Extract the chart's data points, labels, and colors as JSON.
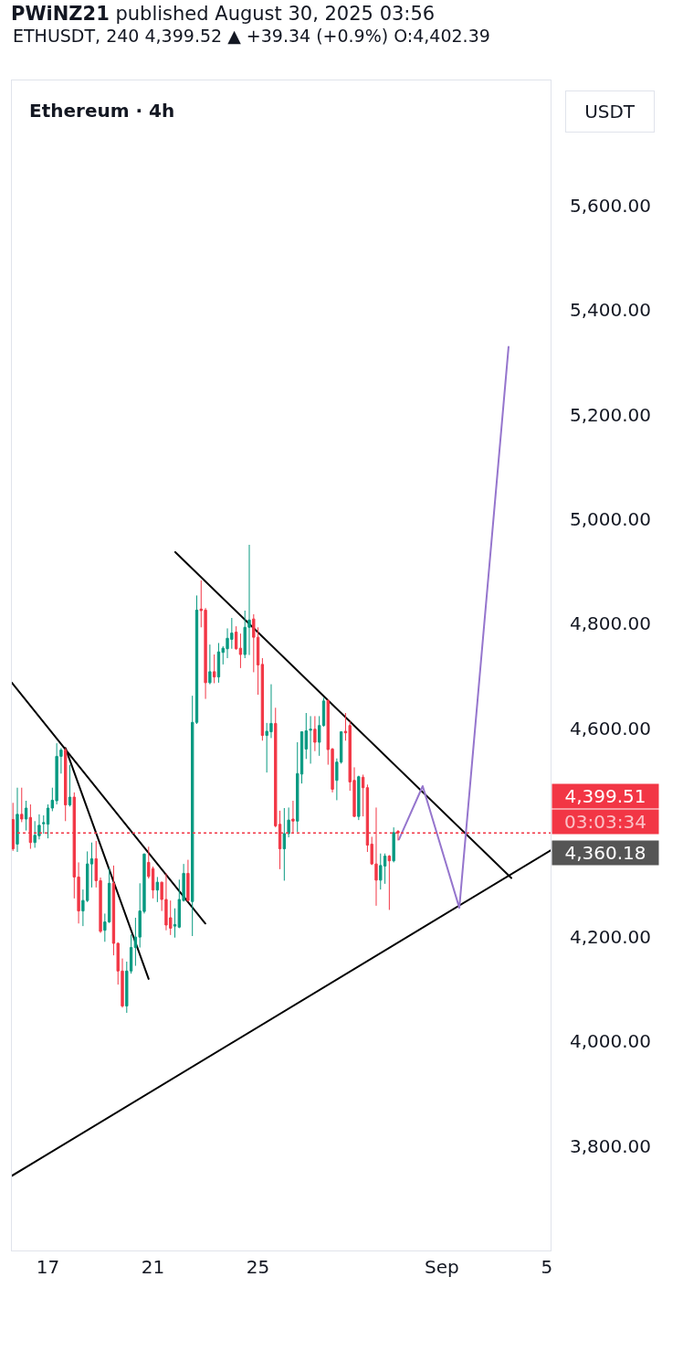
{
  "chart_data": {
    "type": "candlestick",
    "title": "PWiNZ21 published August 30, 2025 03:56",
    "subtitle": "ETHUSDT, 240 4,399.52 ▲ +39.34 (+0.9%) O:4,402.39",
    "annotations": [
      "Ethereum · 4h",
      "USDT",
      "03:03:34",
      "4,360.18"
    ],
    "x": [
      "2025-08-15T16:00",
      "2025-08-15T20:00",
      "2025-08-16T00:00",
      "2025-08-16T04:00",
      "2025-08-16T08:00",
      "2025-08-16T12:00",
      "2025-08-16T16:00",
      "2025-08-16T20:00",
      "2025-08-17T00:00",
      "2025-08-17T04:00",
      "2025-08-17T08:00",
      "2025-08-17T12:00",
      "2025-08-17T16:00",
      "2025-08-17T20:00",
      "2025-08-18T00:00",
      "2025-08-18T04:00",
      "2025-08-18T08:00",
      "2025-08-18T12:00",
      "2025-08-18T16:00",
      "2025-08-18T20:00",
      "2025-08-19T00:00",
      "2025-08-19T04:00",
      "2025-08-19T08:00",
      "2025-08-19T12:00",
      "2025-08-19T16:00",
      "2025-08-19T20:00",
      "2025-08-20T00:00",
      "2025-08-20T04:00",
      "2025-08-20T08:00",
      "2025-08-20T12:00",
      "2025-08-20T16:00",
      "2025-08-20T20:00",
      "2025-08-21T00:00",
      "2025-08-21T04:00",
      "2025-08-21T08:00",
      "2025-08-21T12:00",
      "2025-08-21T16:00",
      "2025-08-21T20:00",
      "2025-08-22T00:00",
      "2025-08-22T04:00",
      "2025-08-22T08:00",
      "2025-08-22T12:00",
      "2025-08-22T16:00",
      "2025-08-22T20:00",
      "2025-08-23T00:00",
      "2025-08-23T04:00",
      "2025-08-23T08:00",
      "2025-08-23T12:00",
      "2025-08-23T16:00",
      "2025-08-23T20:00",
      "2025-08-24T00:00",
      "2025-08-24T04:00",
      "2025-08-24T08:00",
      "2025-08-24T12:00",
      "2025-08-24T16:00",
      "2025-08-24T20:00",
      "2025-08-25T00:00",
      "2025-08-25T04:00",
      "2025-08-25T08:00",
      "2025-08-25T12:00",
      "2025-08-25T16:00",
      "2025-08-25T20:00",
      "2025-08-26T00:00",
      "2025-08-26T04:00",
      "2025-08-26T08:00",
      "2025-08-26T12:00",
      "2025-08-26T16:00",
      "2025-08-26T20:00",
      "2025-08-27T00:00",
      "2025-08-27T04:00",
      "2025-08-27T08:00",
      "2025-08-27T12:00",
      "2025-08-27T16:00",
      "2025-08-27T20:00",
      "2025-08-28T00:00",
      "2025-08-28T04:00",
      "2025-08-28T08:00",
      "2025-08-28T12:00",
      "2025-08-28T16:00",
      "2025-08-28T20:00",
      "2025-08-29T00:00",
      "2025-08-29T04:00",
      "2025-08-29T08:00",
      "2025-08-29T12:00",
      "2025-08-29T16:00",
      "2025-08-29T20:00",
      "2025-08-30T00:00",
      "2025-08-30T04:00",
      "2025-08-30T08:00"
    ],
    "ohlc": [
      [
        4425,
        4457,
        4365,
        4369
      ],
      [
        4378,
        4486,
        4363,
        4435
      ],
      [
        4435,
        4486,
        4420,
        4426
      ],
      [
        4426,
        4461,
        4404,
        4447
      ],
      [
        4429,
        4454,
        4369,
        4381
      ],
      [
        4381,
        4422,
        4371,
        4395
      ],
      [
        4394,
        4435,
        4387,
        4414
      ],
      [
        4417,
        4433,
        4398,
        4419
      ],
      [
        4416,
        4454,
        4389,
        4447
      ],
      [
        4447,
        4486,
        4441,
        4462
      ],
      [
        4461,
        4571,
        4454,
        4546
      ],
      [
        4546,
        4562,
        4513,
        4558
      ],
      [
        4558,
        4562,
        4422,
        4453
      ],
      [
        4453,
        4530,
        4450,
        4468
      ],
      [
        4468,
        4477,
        4274,
        4315
      ],
      [
        4315,
        4343,
        4226,
        4250
      ],
      [
        4250,
        4291,
        4221,
        4270
      ],
      [
        4270,
        4364,
        4267,
        4340
      ],
      [
        4340,
        4381,
        4295,
        4350
      ],
      [
        4350,
        4384,
        4295,
        4308
      ],
      [
        4308,
        4314,
        4208,
        4211
      ],
      [
        4213,
        4245,
        4191,
        4229
      ],
      [
        4229,
        4332,
        4227,
        4303
      ],
      [
        4303,
        4337,
        4165,
        4188
      ],
      [
        4188,
        4190,
        4109,
        4135
      ],
      [
        4135,
        4159,
        4065,
        4068
      ],
      [
        4068,
        4153,
        4055,
        4135
      ],
      [
        4135,
        4205,
        4130,
        4180
      ],
      [
        4180,
        4237,
        4145,
        4200
      ],
      [
        4200,
        4303,
        4180,
        4250
      ],
      [
        4249,
        4360,
        4245,
        4359
      ],
      [
        4343,
        4373,
        4312,
        4316
      ],
      [
        4331,
        4335,
        4274,
        4290
      ],
      [
        4290,
        4315,
        4267,
        4305
      ],
      [
        4305,
        4306,
        4250,
        4272
      ],
      [
        4272,
        4322,
        4213,
        4223
      ],
      [
        4237,
        4270,
        4204,
        4217
      ],
      [
        4221,
        4255,
        4199,
        4224
      ],
      [
        4219,
        4310,
        4217,
        4272
      ],
      [
        4270,
        4340,
        4268,
        4322
      ],
      [
        4322,
        4348,
        4268,
        4270
      ],
      [
        4268,
        4662,
        4202,
        4611
      ],
      [
        4611,
        4854,
        4608,
        4826
      ],
      [
        4828,
        4883,
        4793,
        4825
      ],
      [
        4826,
        4830,
        4656,
        4687
      ],
      [
        4687,
        4760,
        4684,
        4708
      ],
      [
        4708,
        4741,
        4686,
        4698
      ],
      [
        4698,
        4763,
        4687,
        4746
      ],
      [
        4745,
        4757,
        4722,
        4753
      ],
      [
        4752,
        4791,
        4734,
        4772
      ],
      [
        4770,
        4811,
        4752,
        4782
      ],
      [
        4784,
        4795,
        4750,
        4752
      ],
      [
        4753,
        4781,
        4715,
        4741
      ],
      [
        4741,
        4825,
        4734,
        4793
      ],
      [
        4793,
        4951,
        4740,
        4807
      ],
      [
        4809,
        4818,
        4707,
        4774
      ],
      [
        4774,
        4793,
        4664,
        4721
      ],
      [
        4722,
        4734,
        4576,
        4586
      ],
      [
        4586,
        4610,
        4515,
        4594
      ],
      [
        4593,
        4684,
        4581,
        4609
      ],
      [
        4609,
        4639,
        4410,
        4413
      ],
      [
        4416,
        4442,
        4330,
        4369
      ],
      [
        4369,
        4447,
        4308,
        4398
      ],
      [
        4398,
        4448,
        4391,
        4424
      ],
      [
        4426,
        4461,
        4400,
        4422
      ],
      [
        4422,
        4573,
        4401,
        4513
      ],
      [
        4512,
        4594,
        4494,
        4593
      ],
      [
        4560,
        4629,
        4541,
        4595
      ],
      [
        4596,
        4623,
        4532,
        4598
      ],
      [
        4598,
        4623,
        4556,
        4573
      ],
      [
        4573,
        4623,
        4547,
        4605
      ],
      [
        4605,
        4658,
        4603,
        4652
      ],
      [
        4653,
        4655,
        4530,
        4559
      ],
      [
        4560,
        4562,
        4477,
        4483
      ],
      [
        4500,
        4542,
        4462,
        4535
      ],
      [
        4535,
        4594,
        4532,
        4593
      ],
      [
        4594,
        4629,
        4576,
        4591
      ],
      [
        4605,
        4613,
        4480,
        4497
      ],
      [
        4500,
        4525,
        4430,
        4431
      ],
      [
        4431,
        4509,
        4424,
        4507
      ],
      [
        4506,
        4511,
        4431,
        4486
      ],
      [
        4486,
        4492,
        4363,
        4376
      ],
      [
        4378,
        4392,
        4338,
        4340
      ],
      [
        4340,
        4448,
        4260,
        4309
      ],
      [
        4309,
        4360,
        4291,
        4337
      ],
      [
        4336,
        4360,
        4302,
        4355
      ],
      [
        4355,
        4357,
        4252,
        4346
      ],
      [
        4346,
        4410,
        4343,
        4400
      ],
      [
        4402.39,
        4405,
        4385,
        4399.52
      ]
    ],
    "colors": [
      "#f23645",
      "#089981",
      "#f23645",
      "#089981",
      "#f23645",
      "#089981",
      "#089981",
      "#089981",
      "#089981",
      "#089981",
      "#089981",
      "#089981",
      "#f23645",
      "#089981",
      "#f23645",
      "#f23645",
      "#089981",
      "#089981",
      "#089981",
      "#f23645",
      "#f23645",
      "#089981",
      "#089981",
      "#f23645",
      "#f23645",
      "#f23645",
      "#089981",
      "#089981",
      "#089981",
      "#089981",
      "#089981",
      "#f23645",
      "#f23645",
      "#089981",
      "#f23645",
      "#f23645",
      "#f23645",
      "#089981",
      "#089981",
      "#089981",
      "#f23645",
      "#089981",
      "#089981",
      "#f23645",
      "#f23645",
      "#089981",
      "#f23645",
      "#089981",
      "#089981",
      "#089981",
      "#089981",
      "#f23645",
      "#f23645",
      "#089981",
      "#089981",
      "#f23645",
      "#f23645",
      "#f23645",
      "#089981",
      "#089981",
      "#f23645",
      "#f23645",
      "#089981",
      "#089981",
      "#f23645",
      "#089981",
      "#089981",
      "#089981",
      "#089981",
      "#f23645",
      "#089981",
      "#089981",
      "#f23645",
      "#f23645",
      "#089981",
      "#089981",
      "#f23645",
      "#f23645",
      "#f23645",
      "#089981",
      "#f23645",
      "#f23645",
      "#f23645",
      "#f23645",
      "#089981",
      "#089981",
      "#f23645",
      "#089981",
      "#f23645"
    ],
    "series": [
      {
        "type": "line",
        "color": "#000000",
        "x": [
          "2025-08-15T15:00",
          "2025-08-22T23:50"
        ],
        "values": [
          4687,
          4226
        ]
      },
      {
        "type": "line",
        "color": "#000000",
        "x": [
          "2025-08-17T16:00",
          "2025-08-20T20:00"
        ],
        "values": [
          4562,
          4120
        ]
      },
      {
        "type": "line",
        "color": "#000000",
        "x": [
          "2025-08-21T20:20",
          "2025-09-03T15:30"
        ],
        "values": [
          4937,
          4313
        ]
      },
      {
        "type": "line",
        "color": "#000000",
        "x": [
          "2025-08-15T15:00",
          "2025-09-05T03:25"
        ],
        "values": [
          3743,
          4366
        ]
      },
      {
        "type": "line",
        "color": "#9575cd",
        "x": [
          "2025-08-30T08:50",
          "2025-08-31T06:30",
          "2025-09-01T16:00",
          "2025-09-03T13:00"
        ],
        "values": [
          4387,
          4489,
          4256,
          5330
        ]
      }
    ],
    "ref_lines": [
      {
        "axis": "y",
        "value": 4399.51,
        "label": "4,399.51",
        "color": "#f23645",
        "line_style": "dotted"
      }
    ],
    "xlim": [
      "2025-08-15T15:00",
      "2025-09-05T03:25"
    ],
    "xticks": [
      {
        "value": "2025-08-17",
        "label": "17"
      },
      {
        "value": "2025-08-21",
        "label": "21"
      },
      {
        "value": "2025-08-25",
        "label": "25"
      },
      {
        "value": "2025-09-01",
        "label": "Sep"
      },
      {
        "value": "2025-09-05",
        "label": "5"
      }
    ],
    "ylim": [
      3600,
      5840
    ],
    "yticks": [
      {
        "value": 3800,
        "label": "3,800.00"
      },
      {
        "value": 4000,
        "label": "4,000.00"
      },
      {
        "value": 4200,
        "label": "4,200.00"
      },
      {
        "value": 4600,
        "label": "4,600.00"
      },
      {
        "value": 4800,
        "label": "4,800.00"
      },
      {
        "value": 5000,
        "label": "5,000.00"
      },
      {
        "value": 5200,
        "label": "5,200.00"
      },
      {
        "value": 5400,
        "label": "5,400.00"
      },
      {
        "value": 5600,
        "label": "5,600.00"
      }
    ]
  }
}
